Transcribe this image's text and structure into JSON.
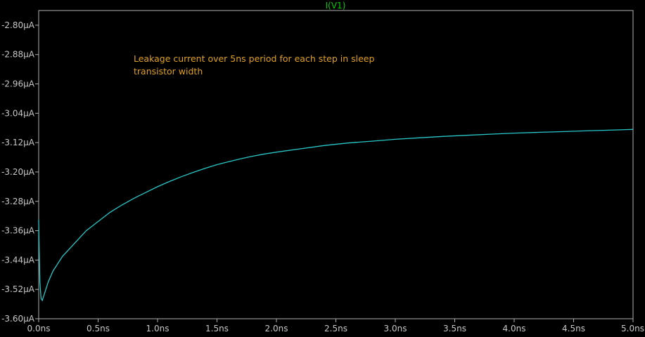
{
  "chart_data": {
    "type": "line",
    "title": "I(V1)",
    "xlabel": "",
    "ylabel": "",
    "xlim": [
      0,
      5.0
    ],
    "ylim": [
      -3.6,
      -2.76
    ],
    "x_ticks": [
      "0.0ns",
      "0.5ns",
      "1.0ns",
      "1.5ns",
      "2.0ns",
      "2.5ns",
      "3.0ns",
      "3.5ns",
      "4.0ns",
      "4.5ns",
      "5.0ns"
    ],
    "x_tick_values": [
      0,
      0.5,
      1.0,
      1.5,
      2.0,
      2.5,
      3.0,
      3.5,
      4.0,
      4.5,
      5.0
    ],
    "y_ticks": [
      "-2.80µA",
      "-2.88µA",
      "-2.96µA",
      "-3.04µA",
      "-3.12µA",
      "-3.20µA",
      "-3.28µA",
      "-3.36µA",
      "-3.44µA",
      "-3.52µA",
      "-3.60µA"
    ],
    "y_tick_values": [
      -2.8,
      -2.88,
      -2.96,
      -3.04,
      -3.12,
      -3.2,
      -3.28,
      -3.36,
      -3.44,
      -3.52,
      -3.6
    ],
    "annotation": {
      "line1": "Leakage current over 5ns period for each step in sleep",
      "line2": "transistor width"
    },
    "grid": false,
    "series": [
      {
        "name": "I(V1)",
        "color": "#28c8c8",
        "x": [
          0.0,
          0.005,
          0.01,
          0.02,
          0.03,
          0.05,
          0.08,
          0.12,
          0.2,
          0.3,
          0.4,
          0.5,
          0.6,
          0.7,
          0.8,
          0.9,
          1.0,
          1.1,
          1.2,
          1.3,
          1.4,
          1.5,
          1.6,
          1.7,
          1.8,
          1.9,
          2.0,
          2.2,
          2.4,
          2.6,
          2.8,
          3.0,
          3.2,
          3.4,
          3.6,
          3.8,
          4.0,
          4.2,
          4.4,
          4.6,
          4.8,
          5.0
        ],
        "y": [
          -3.33,
          -3.42,
          -3.5,
          -3.545,
          -3.55,
          -3.53,
          -3.5,
          -3.47,
          -3.43,
          -3.395,
          -3.36,
          -3.335,
          -3.31,
          -3.29,
          -3.272,
          -3.256,
          -3.24,
          -3.226,
          -3.213,
          -3.201,
          -3.19,
          -3.18,
          -3.172,
          -3.164,
          -3.157,
          -3.151,
          -3.146,
          -3.137,
          -3.128,
          -3.121,
          -3.116,
          -3.111,
          -3.107,
          -3.103,
          -3.1,
          -3.097,
          -3.094,
          -3.092,
          -3.09,
          -3.088,
          -3.086,
          -3.084
        ]
      }
    ]
  }
}
